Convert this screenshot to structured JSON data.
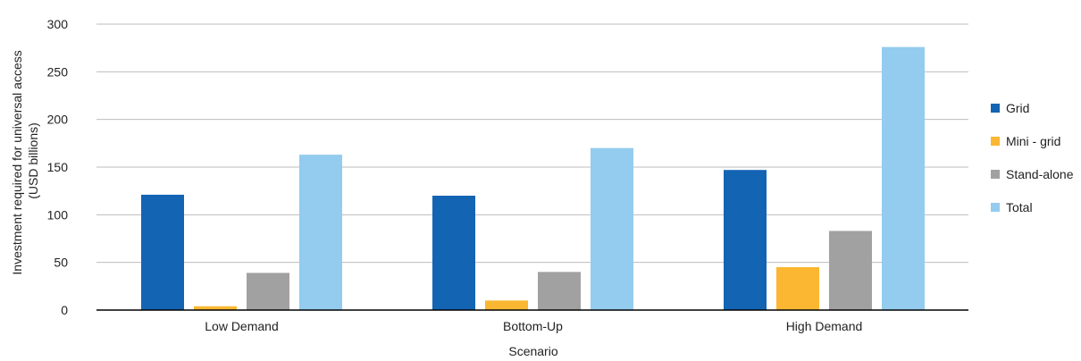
{
  "chart_data": {
    "type": "bar",
    "title": "",
    "xlabel": "Scenario",
    "ylabel_lines": [
      "Investment required for universal access",
      "(USD billions)"
    ],
    "categories": [
      "Low Demand",
      "Bottom-Up",
      "High Demand"
    ],
    "series": [
      {
        "name": "Grid",
        "color": "#1464b4",
        "values": [
          121,
          120,
          147
        ]
      },
      {
        "name": "Mini - grid",
        "color": "#fbb731",
        "values": [
          4,
          10,
          45
        ]
      },
      {
        "name": "Stand-alone",
        "color": "#a1a1a1",
        "values": [
          39,
          40,
          83
        ]
      },
      {
        "name": "Total",
        "color": "#93ccee",
        "values": [
          163,
          170,
          276
        ]
      }
    ],
    "ylim": [
      0,
      300
    ],
    "yticks": [
      0,
      50,
      100,
      150,
      200,
      250,
      300
    ],
    "grid": true,
    "legend_position": "right"
  }
}
